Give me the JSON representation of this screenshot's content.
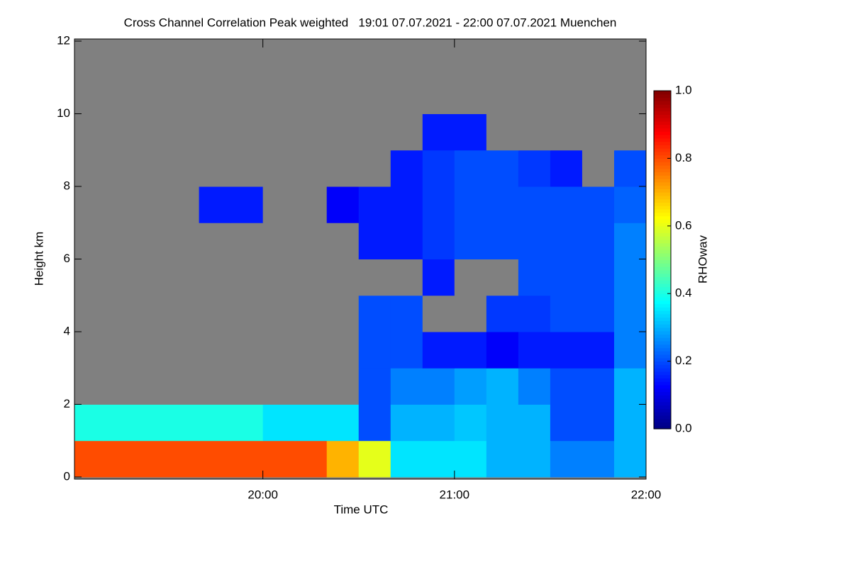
{
  "chart_data": {
    "type": "heatmap",
    "title": "Cross Channel Correlation Peak weighted   19:01 07.07.2021 - 22:00 07.07.2021 Muenchen",
    "x_label": "Time UTC",
    "y_label": "Height km",
    "colorbar_label": "RHOwav",
    "x_bins": [
      "19:01",
      "19:10",
      "19:20",
      "19:30",
      "19:40",
      "19:50",
      "20:00",
      "20:10",
      "20:20",
      "20:30",
      "20:40",
      "20:50",
      "21:00",
      "21:10",
      "21:20",
      "21:30",
      "21:40",
      "21:50",
      "22:00"
    ],
    "y_bins": [
      0,
      1,
      2,
      3,
      4,
      5,
      6,
      7,
      8,
      9,
      10,
      11,
      12
    ],
    "z": [
      [
        0.8,
        0.8,
        0.8,
        0.8,
        0.8,
        0.8,
        0.8,
        0.8,
        0.7,
        0.6,
        0.35,
        0.35,
        0.35,
        0.3,
        0.3,
        0.25,
        0.25,
        0.3
      ],
      [
        0.4,
        0.4,
        0.4,
        0.4,
        0.4,
        0.4,
        0.35,
        0.35,
        0.35,
        0.2,
        0.3,
        0.3,
        0.32,
        0.3,
        0.3,
        0.2,
        0.2,
        0.3
      ],
      [
        null,
        null,
        null,
        null,
        null,
        null,
        null,
        null,
        null,
        0.2,
        0.25,
        0.25,
        0.28,
        0.3,
        0.25,
        0.2,
        0.2,
        0.3
      ],
      [
        null,
        null,
        null,
        null,
        null,
        null,
        null,
        null,
        null,
        0.2,
        0.2,
        0.15,
        0.15,
        0.12,
        0.15,
        0.15,
        0.15,
        0.25
      ],
      [
        null,
        null,
        null,
        null,
        null,
        null,
        null,
        null,
        null,
        0.2,
        0.2,
        null,
        null,
        0.18,
        0.18,
        0.2,
        0.2,
        0.25
      ],
      [
        null,
        null,
        null,
        null,
        null,
        null,
        null,
        null,
        null,
        null,
        null,
        0.15,
        null,
        null,
        0.2,
        0.2,
        0.2,
        0.25
      ],
      [
        null,
        null,
        null,
        null,
        null,
        null,
        null,
        null,
        null,
        0.15,
        0.15,
        0.18,
        0.2,
        0.2,
        0.2,
        0.2,
        0.2,
        0.25
      ],
      [
        null,
        null,
        null,
        null,
        0.15,
        0.15,
        null,
        null,
        0.12,
        0.15,
        0.15,
        0.18,
        0.2,
        0.2,
        0.2,
        0.2,
        0.2,
        0.22
      ],
      [
        null,
        null,
        null,
        null,
        null,
        null,
        null,
        null,
        null,
        null,
        0.15,
        0.18,
        0.2,
        0.2,
        0.18,
        0.15,
        null,
        0.2
      ],
      [
        null,
        null,
        null,
        null,
        null,
        null,
        null,
        null,
        null,
        null,
        null,
        0.15,
        0.15,
        null,
        null,
        null,
        null,
        null
      ],
      [
        null,
        null,
        null,
        null,
        null,
        null,
        null,
        null,
        null,
        null,
        null,
        null,
        null,
        null,
        null,
        null,
        null,
        null
      ],
      [
        null,
        null,
        null,
        null,
        null,
        null,
        null,
        null,
        null,
        null,
        null,
        null,
        null,
        null,
        null,
        null,
        null,
        null
      ]
    ],
    "xlim": [
      "19:01",
      "22:00"
    ],
    "xticks": [
      "20:00",
      "21:00",
      "22:00"
    ],
    "ylim": [
      0,
      12
    ],
    "yticks": [
      0,
      2,
      4,
      6,
      8,
      10,
      12
    ],
    "zlim": [
      0,
      1
    ],
    "zticks": [
      {
        "value": 0,
        "label": "0.0"
      },
      {
        "value": 0.2,
        "label": "0.2"
      },
      {
        "value": 0.4,
        "label": "0.4"
      },
      {
        "value": 0.6,
        "label": "0.6"
      },
      {
        "value": 0.8,
        "label": "0.8"
      },
      {
        "value": 1,
        "label": "1.0"
      }
    ],
    "colormap": "jet",
    "missing_color": "#808080"
  }
}
